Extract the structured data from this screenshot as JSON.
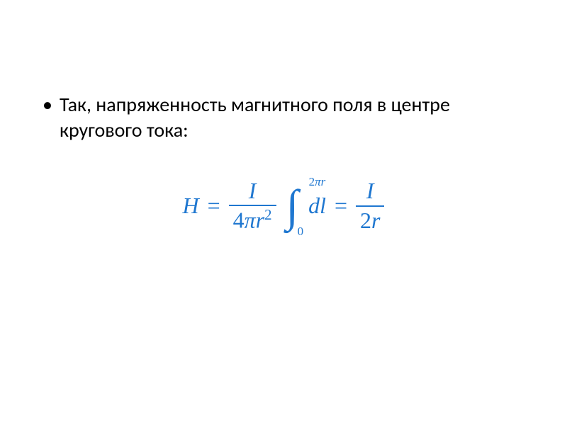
{
  "slide": {
    "background_color": "#ffffff",
    "text_color": "#000000",
    "bullet_glyph": "•",
    "bullet_text": "Так, напряженность магнитного поля в центре кругового тока:",
    "bullet_fontsize": 28
  },
  "equation": {
    "color": "#1f77d0",
    "fontsize": 32,
    "lhs_var": "H",
    "eq1": "=",
    "frac1_num": "I",
    "frac1_den_coeff": "4",
    "frac1_den_pi": "π",
    "frac1_den_r": "r",
    "frac1_den_exp": "2",
    "int_symbol": "∫",
    "int_upper_coeff": "2",
    "int_upper_pi": "π",
    "int_upper_r": "r",
    "int_lower": "0",
    "integrand_d": "d",
    "integrand_l": "l",
    "eq2": "=",
    "frac2_num": "I",
    "frac2_den_coeff": "2",
    "frac2_den_r": "r"
  }
}
